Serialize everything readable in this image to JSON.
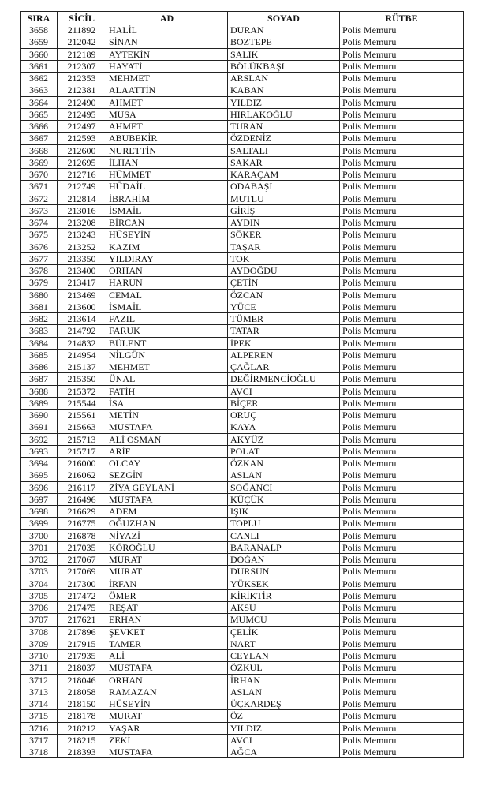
{
  "headers": {
    "sira": "SIRA",
    "sicil": "SİCİL",
    "ad": "AD",
    "soyad": "SOYAD",
    "rutbe": "RÜTBE"
  },
  "rows": [
    [
      "3658",
      "211892",
      "HALİL",
      "DURAN",
      "Polis Memuru"
    ],
    [
      "3659",
      "212042",
      "SİNAN",
      "BOZTEPE",
      "Polis Memuru"
    ],
    [
      "3660",
      "212189",
      "AYTEKİN",
      "SALIK",
      "Polis Memuru"
    ],
    [
      "3661",
      "212307",
      "HAYATİ",
      "BÖLÜKBAŞI",
      "Polis Memuru"
    ],
    [
      "3662",
      "212353",
      "MEHMET",
      "ARSLAN",
      "Polis Memuru"
    ],
    [
      "3663",
      "212381",
      "ALAATTİN",
      "KABAN",
      "Polis Memuru"
    ],
    [
      "3664",
      "212490",
      "AHMET",
      "YILDIZ",
      "Polis Memuru"
    ],
    [
      "3665",
      "212495",
      "MUSA",
      "HIRLAKOĞLU",
      "Polis Memuru"
    ],
    [
      "3666",
      "212497",
      "AHMET",
      "TURAN",
      "Polis Memuru"
    ],
    [
      "3667",
      "212593",
      "ABUBEKİR",
      "ÖZDENİZ",
      "Polis Memuru"
    ],
    [
      "3668",
      "212600",
      "NURETTİN",
      "SALTALI",
      "Polis Memuru"
    ],
    [
      "3669",
      "212695",
      "İLHAN",
      "SAKAR",
      "Polis Memuru"
    ],
    [
      "3670",
      "212716",
      "HÜMMET",
      "KARAÇAM",
      "Polis Memuru"
    ],
    [
      "3671",
      "212749",
      "HÜDAİL",
      "ODABAŞI",
      "Polis Memuru"
    ],
    [
      "3672",
      "212814",
      "İBRAHİM",
      "MUTLU",
      "Polis Memuru"
    ],
    [
      "3673",
      "213016",
      "İSMAİL",
      "GİRİŞ",
      "Polis Memuru"
    ],
    [
      "3674",
      "213208",
      "BİRCAN",
      "AYDIN",
      "Polis Memuru"
    ],
    [
      "3675",
      "213243",
      "HÜSEYİN",
      "SÖKER",
      "Polis Memuru"
    ],
    [
      "3676",
      "213252",
      "KAZIM",
      "TAŞAR",
      "Polis Memuru"
    ],
    [
      "3677",
      "213350",
      "YILDIRAY",
      "TOK",
      "Polis Memuru"
    ],
    [
      "3678",
      "213400",
      "ORHAN",
      "AYDOĞDU",
      "Polis Memuru"
    ],
    [
      "3679",
      "213417",
      "HARUN",
      "ÇETİN",
      "Polis Memuru"
    ],
    [
      "3680",
      "213469",
      "CEMAL",
      "ÖZCAN",
      "Polis Memuru"
    ],
    [
      "3681",
      "213600",
      "İSMAİL",
      "YÜCE",
      "Polis Memuru"
    ],
    [
      "3682",
      "213614",
      "FAZIL",
      "TÜMER",
      "Polis Memuru"
    ],
    [
      "3683",
      "214792",
      "FARUK",
      "TATAR",
      "Polis Memuru"
    ],
    [
      "3684",
      "214832",
      "BÜLENT",
      "İPEK",
      "Polis Memuru"
    ],
    [
      "3685",
      "214954",
      "NİLGÜN",
      "ALPEREN",
      "Polis Memuru"
    ],
    [
      "3686",
      "215137",
      "MEHMET",
      "ÇAĞLAR",
      "Polis Memuru"
    ],
    [
      "3687",
      "215350",
      "ÜNAL",
      "DEĞİRMENCİOĞLU",
      "Polis Memuru"
    ],
    [
      "3688",
      "215372",
      "FATİH",
      "AVCI",
      "Polis Memuru"
    ],
    [
      "3689",
      "215544",
      "İSA",
      "BİÇER",
      "Polis Memuru"
    ],
    [
      "3690",
      "215561",
      "METİN",
      "ORUÇ",
      "Polis Memuru"
    ],
    [
      "3691",
      "215663",
      "MUSTAFA",
      "KAYA",
      "Polis Memuru"
    ],
    [
      "3692",
      "215713",
      "ALİ OSMAN",
      "AKYÜZ",
      "Polis Memuru"
    ],
    [
      "3693",
      "215717",
      "ARİF",
      "POLAT",
      "Polis Memuru"
    ],
    [
      "3694",
      "216000",
      "OLCAY",
      "ÖZKAN",
      "Polis Memuru"
    ],
    [
      "3695",
      "216062",
      "SEZGİN",
      "ASLAN",
      "Polis Memuru"
    ],
    [
      "3696",
      "216117",
      "ZİYA GEYLANİ",
      "SOĞANCI",
      "Polis Memuru"
    ],
    [
      "3697",
      "216496",
      "MUSTAFA",
      "KÜÇÜK",
      "Polis Memuru"
    ],
    [
      "3698",
      "216629",
      "ADEM",
      "IŞIK",
      "Polis Memuru"
    ],
    [
      "3699",
      "216775",
      "OĞUZHAN",
      "TOPLU",
      "Polis Memuru"
    ],
    [
      "3700",
      "216878",
      "NİYAZİ",
      "CANLI",
      "Polis Memuru"
    ],
    [
      "3701",
      "217035",
      "KÖROĞLU",
      "BARANALP",
      "Polis Memuru"
    ],
    [
      "3702",
      "217067",
      "MURAT",
      "DOĞAN",
      "Polis Memuru"
    ],
    [
      "3703",
      "217069",
      "MURAT",
      "DURSUN",
      "Polis Memuru"
    ],
    [
      "3704",
      "217300",
      "İRFAN",
      "YÜKSEK",
      "Polis Memuru"
    ],
    [
      "3705",
      "217472",
      "ÖMER",
      "KİRİKTİR",
      "Polis Memuru"
    ],
    [
      "3706",
      "217475",
      "REŞAT",
      "AKSU",
      "Polis Memuru"
    ],
    [
      "3707",
      "217621",
      "ERHAN",
      "MUMCU",
      "Polis Memuru"
    ],
    [
      "3708",
      "217896",
      "ŞEVKET",
      "ÇELİK",
      "Polis Memuru"
    ],
    [
      "3709",
      "217915",
      "TAMER",
      "NART",
      "Polis Memuru"
    ],
    [
      "3710",
      "217935",
      "ALİ",
      "CEYLAN",
      "Polis Memuru"
    ],
    [
      "3711",
      "218037",
      "MUSTAFA",
      "ÖZKUL",
      "Polis Memuru"
    ],
    [
      "3712",
      "218046",
      "ORHAN",
      "İRHAN",
      "Polis Memuru"
    ],
    [
      "3713",
      "218058",
      "RAMAZAN",
      "ASLAN",
      "Polis Memuru"
    ],
    [
      "3714",
      "218150",
      "HÜSEYİN",
      "ÜÇKARDEŞ",
      "Polis Memuru"
    ],
    [
      "3715",
      "218178",
      "MURAT",
      "ÖZ",
      "Polis Memuru"
    ],
    [
      "3716",
      "218212",
      "YAŞAR",
      "YILDIZ",
      "Polis Memuru"
    ],
    [
      "3717",
      "218215",
      "ZEKİ",
      "AVCI",
      "Polis Memuru"
    ],
    [
      "3718",
      "218393",
      "MUSTAFA",
      "AĞCA",
      "Polis Memuru"
    ]
  ]
}
